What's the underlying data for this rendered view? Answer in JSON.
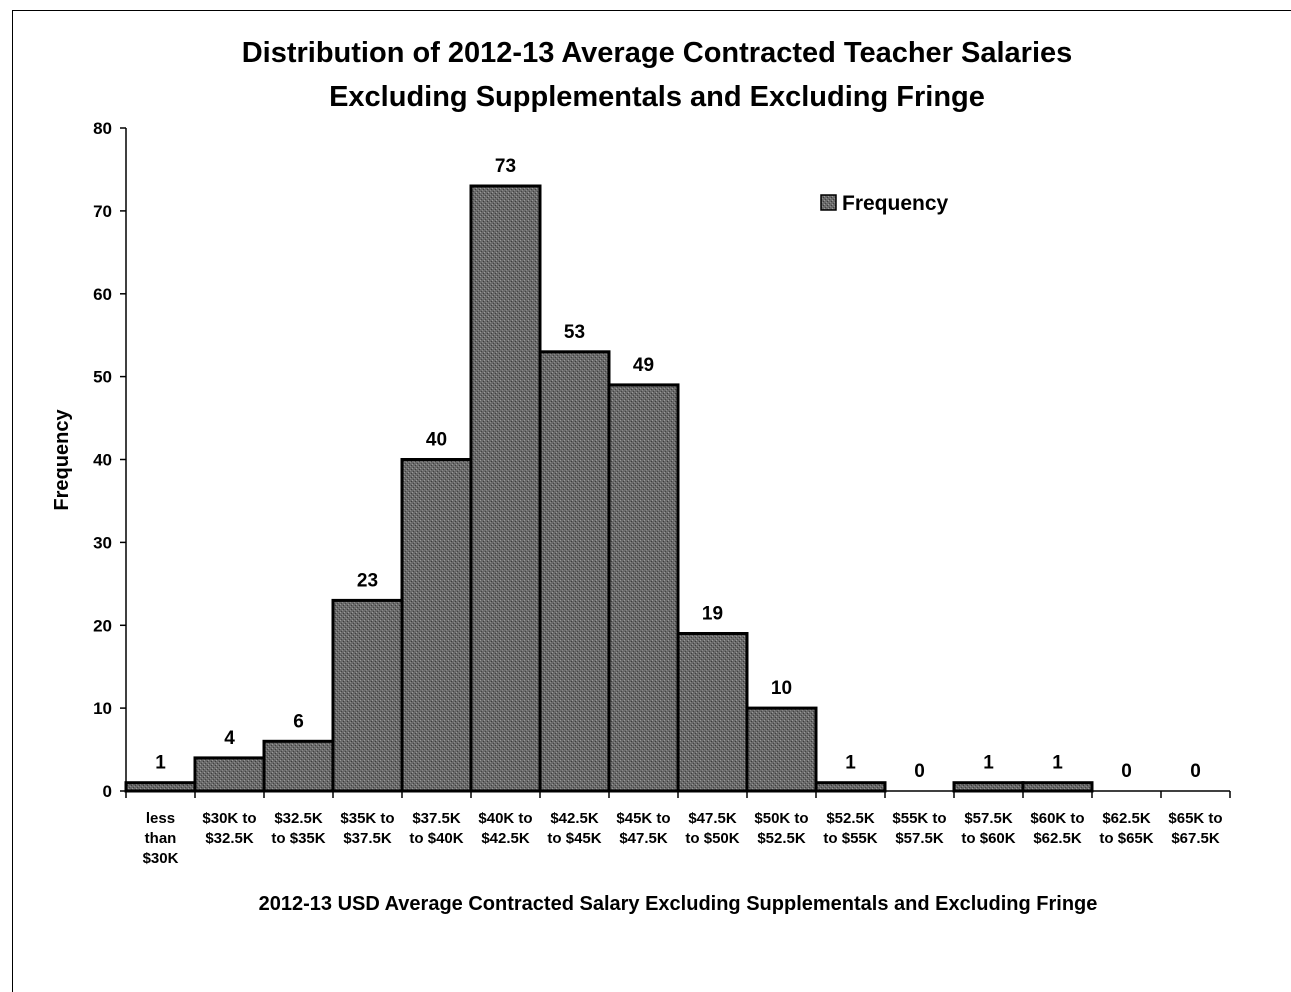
{
  "chart_data": {
    "type": "bar",
    "title_lines": [
      "Distribution of 2012-13 Average Contracted Teacher Salaries",
      "Excluding Supplementals and Excluding Fringe"
    ],
    "xlabel": "2012-13 USD Average Contracted Salary Excluding Supplementals and Excluding Fringe",
    "ylabel": "Frequency",
    "ylim": [
      0,
      80
    ],
    "yticks": [
      0,
      10,
      20,
      30,
      40,
      50,
      60,
      70,
      80
    ],
    "categories": [
      [
        "less",
        "than",
        "$30K"
      ],
      [
        "$30K to",
        "$32.5K"
      ],
      [
        "$32.5K",
        "to $35K"
      ],
      [
        "$35K to",
        "$37.5K"
      ],
      [
        "$37.5K",
        "to $40K"
      ],
      [
        "$40K to",
        "$42.5K"
      ],
      [
        "$42.5K",
        "to $45K"
      ],
      [
        "$45K to",
        "$47.5K"
      ],
      [
        "$47.5K",
        "to $50K"
      ],
      [
        "$50K to",
        "$52.5K"
      ],
      [
        "$52.5K",
        "to $55K"
      ],
      [
        "$55K to",
        "$57.5K"
      ],
      [
        "$57.5K",
        "to $60K"
      ],
      [
        "$60K to",
        "$62.5K"
      ],
      [
        "$62.5K",
        "to $65K"
      ],
      [
        "$65K to",
        "$67.5K"
      ]
    ],
    "series": [
      {
        "name": "Frequency",
        "values": [
          1,
          4,
          6,
          23,
          40,
          73,
          53,
          49,
          19,
          10,
          1,
          0,
          1,
          1,
          0,
          0
        ]
      }
    ],
    "data_labels": true,
    "grid": false,
    "legend": {
      "position": "top-right",
      "entries": [
        "Frequency"
      ]
    },
    "colors": {
      "bar_fill": "#6e6e6e",
      "bar_stroke": "#000000",
      "axis": "#000000"
    }
  }
}
